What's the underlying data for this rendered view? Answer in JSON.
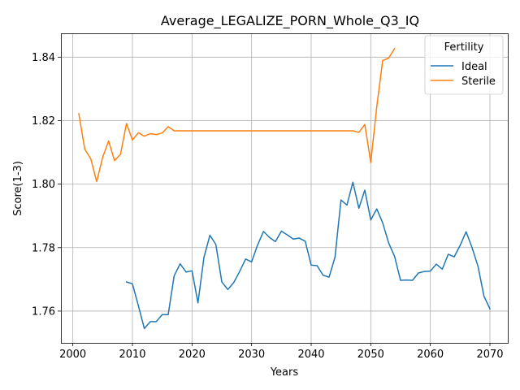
{
  "chart_data": {
    "type": "line",
    "title": "Average_LEGALIZE_PORN_Whole_Q3_IQ",
    "xlabel": "Years",
    "ylabel": "Score(1-3)",
    "xlim": [
      1998,
      2073
    ],
    "ylim": [
      1.75,
      1.8475
    ],
    "xticks": [
      2000,
      2010,
      2020,
      2030,
      2040,
      2050,
      2060,
      2070
    ],
    "xtick_labels": [
      "2000",
      "2010",
      "2020",
      "2030",
      "2040",
      "2050",
      "2060",
      "2070"
    ],
    "yticks": [
      1.76,
      1.78,
      1.8,
      1.82,
      1.84
    ],
    "ytick_labels": [
      "1.76",
      "1.78",
      "1.80",
      "1.82",
      "1.84"
    ],
    "grid": true,
    "legend": {
      "title": "Fertility",
      "placement": "top-right"
    },
    "series": [
      {
        "name": "Ideal",
        "color": "#1f77b4",
        "x": [
          2009,
          2010,
          2011,
          2012,
          2013,
          2014,
          2015,
          2016,
          2017,
          2018,
          2019,
          2020,
          2021,
          2022,
          2023,
          2024,
          2025,
          2026,
          2027,
          2028,
          2029,
          2030,
          2031,
          2032,
          2033,
          2034,
          2035,
          2036,
          2037,
          2038,
          2039,
          2040,
          2041,
          2042,
          2043,
          2044,
          2045,
          2046,
          2047,
          2048,
          2049,
          2050,
          2051,
          2052,
          2053,
          2054,
          2055,
          2056,
          2057,
          2058,
          2059,
          2060,
          2061,
          2062,
          2063,
          2064,
          2065,
          2066,
          2067,
          2068,
          2069,
          2070
        ],
        "values": [
          1.7692,
          1.7686,
          1.7617,
          1.7545,
          1.7567,
          1.7567,
          1.7589,
          1.7589,
          1.7711,
          1.7749,
          1.7723,
          1.7727,
          1.7626,
          1.7769,
          1.7839,
          1.781,
          1.7692,
          1.7668,
          1.769,
          1.7725,
          1.7764,
          1.7755,
          1.7808,
          1.7851,
          1.7832,
          1.7819,
          1.7852,
          1.784,
          1.7827,
          1.783,
          1.782,
          1.7745,
          1.7743,
          1.7713,
          1.7707,
          1.777,
          1.795,
          1.7934,
          1.8006,
          1.7924,
          1.7981,
          1.7887,
          1.7922,
          1.7878,
          1.7815,
          1.7772,
          1.7697,
          1.7698,
          1.7697,
          1.772,
          1.7725,
          1.7726,
          1.7748,
          1.7732,
          1.7779,
          1.7771,
          1.7807,
          1.785,
          1.78,
          1.7741,
          1.7647,
          1.7607
        ]
      },
      {
        "name": "Sterile",
        "color": "#ff7f0e",
        "x": [
          2001,
          2002,
          2003,
          2004,
          2005,
          2006,
          2007,
          2008,
          2009,
          2010,
          2011,
          2012,
          2013,
          2014,
          2015,
          2016,
          2017,
          2018,
          2019,
          2020,
          2021,
          2022,
          2023,
          2024,
          2025,
          2026,
          2027,
          2028,
          2029,
          2030,
          2031,
          2032,
          2033,
          2034,
          2035,
          2036,
          2037,
          2038,
          2039,
          2040,
          2041,
          2042,
          2043,
          2044,
          2045,
          2046,
          2047,
          2048,
          2049,
          2050,
          2051,
          2052,
          2053,
          2054
        ],
        "values": [
          1.8222,
          1.811,
          1.808,
          1.8008,
          1.8084,
          1.8136,
          1.8074,
          1.8094,
          1.8191,
          1.8139,
          1.8162,
          1.8151,
          1.8159,
          1.8156,
          1.8161,
          1.8181,
          1.8168,
          1.8168,
          1.8168,
          1.8168,
          1.8168,
          1.8168,
          1.8168,
          1.8168,
          1.8168,
          1.8168,
          1.8168,
          1.8168,
          1.8168,
          1.8168,
          1.8168,
          1.8168,
          1.8168,
          1.8168,
          1.8168,
          1.8168,
          1.8168,
          1.8168,
          1.8168,
          1.8168,
          1.8168,
          1.8168,
          1.8168,
          1.8168,
          1.8168,
          1.8168,
          1.8168,
          1.8163,
          1.8188,
          1.8068,
          1.8243,
          1.8389,
          1.8397,
          1.8427
        ]
      }
    ]
  }
}
